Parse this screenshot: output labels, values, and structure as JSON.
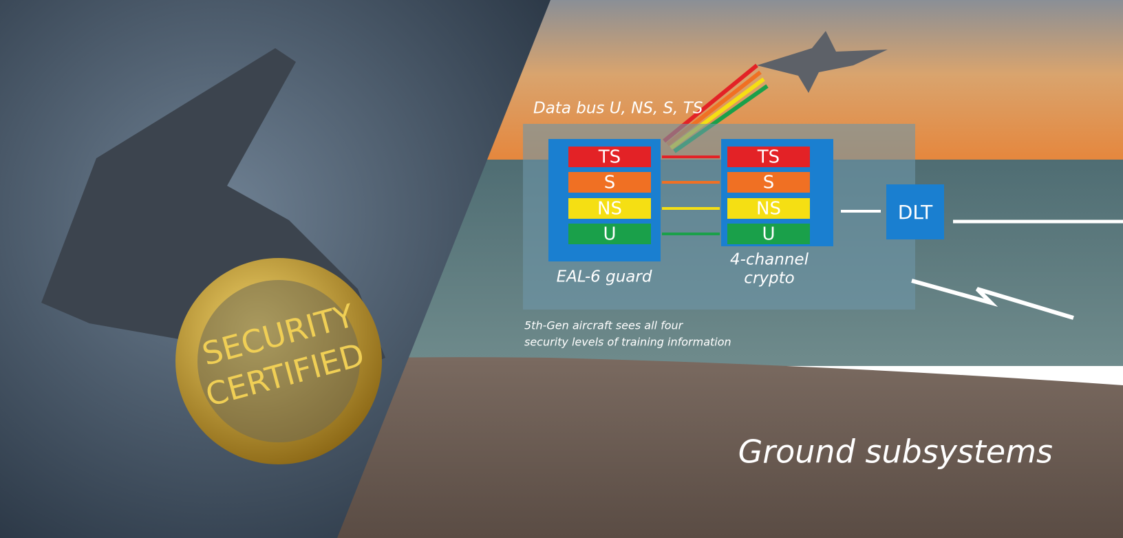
{
  "badge": {
    "lines": [
      "SECURITY",
      "CERTIFIED"
    ]
  },
  "data_bus": "Data bus  U, NS, S, TS",
  "guard": {
    "levels": [
      "TS",
      "S",
      "NS",
      "U"
    ],
    "label": "EAL-6 guard"
  },
  "crypto": {
    "levels": [
      "TS",
      "S",
      "NS",
      "U"
    ],
    "label": [
      "4-channel",
      "crypto"
    ]
  },
  "dlt": "DLT",
  "caption": [
    "5th-Gen aircraft sees all four",
    "security levels of training information"
  ],
  "footer": "Ground subsystems"
}
